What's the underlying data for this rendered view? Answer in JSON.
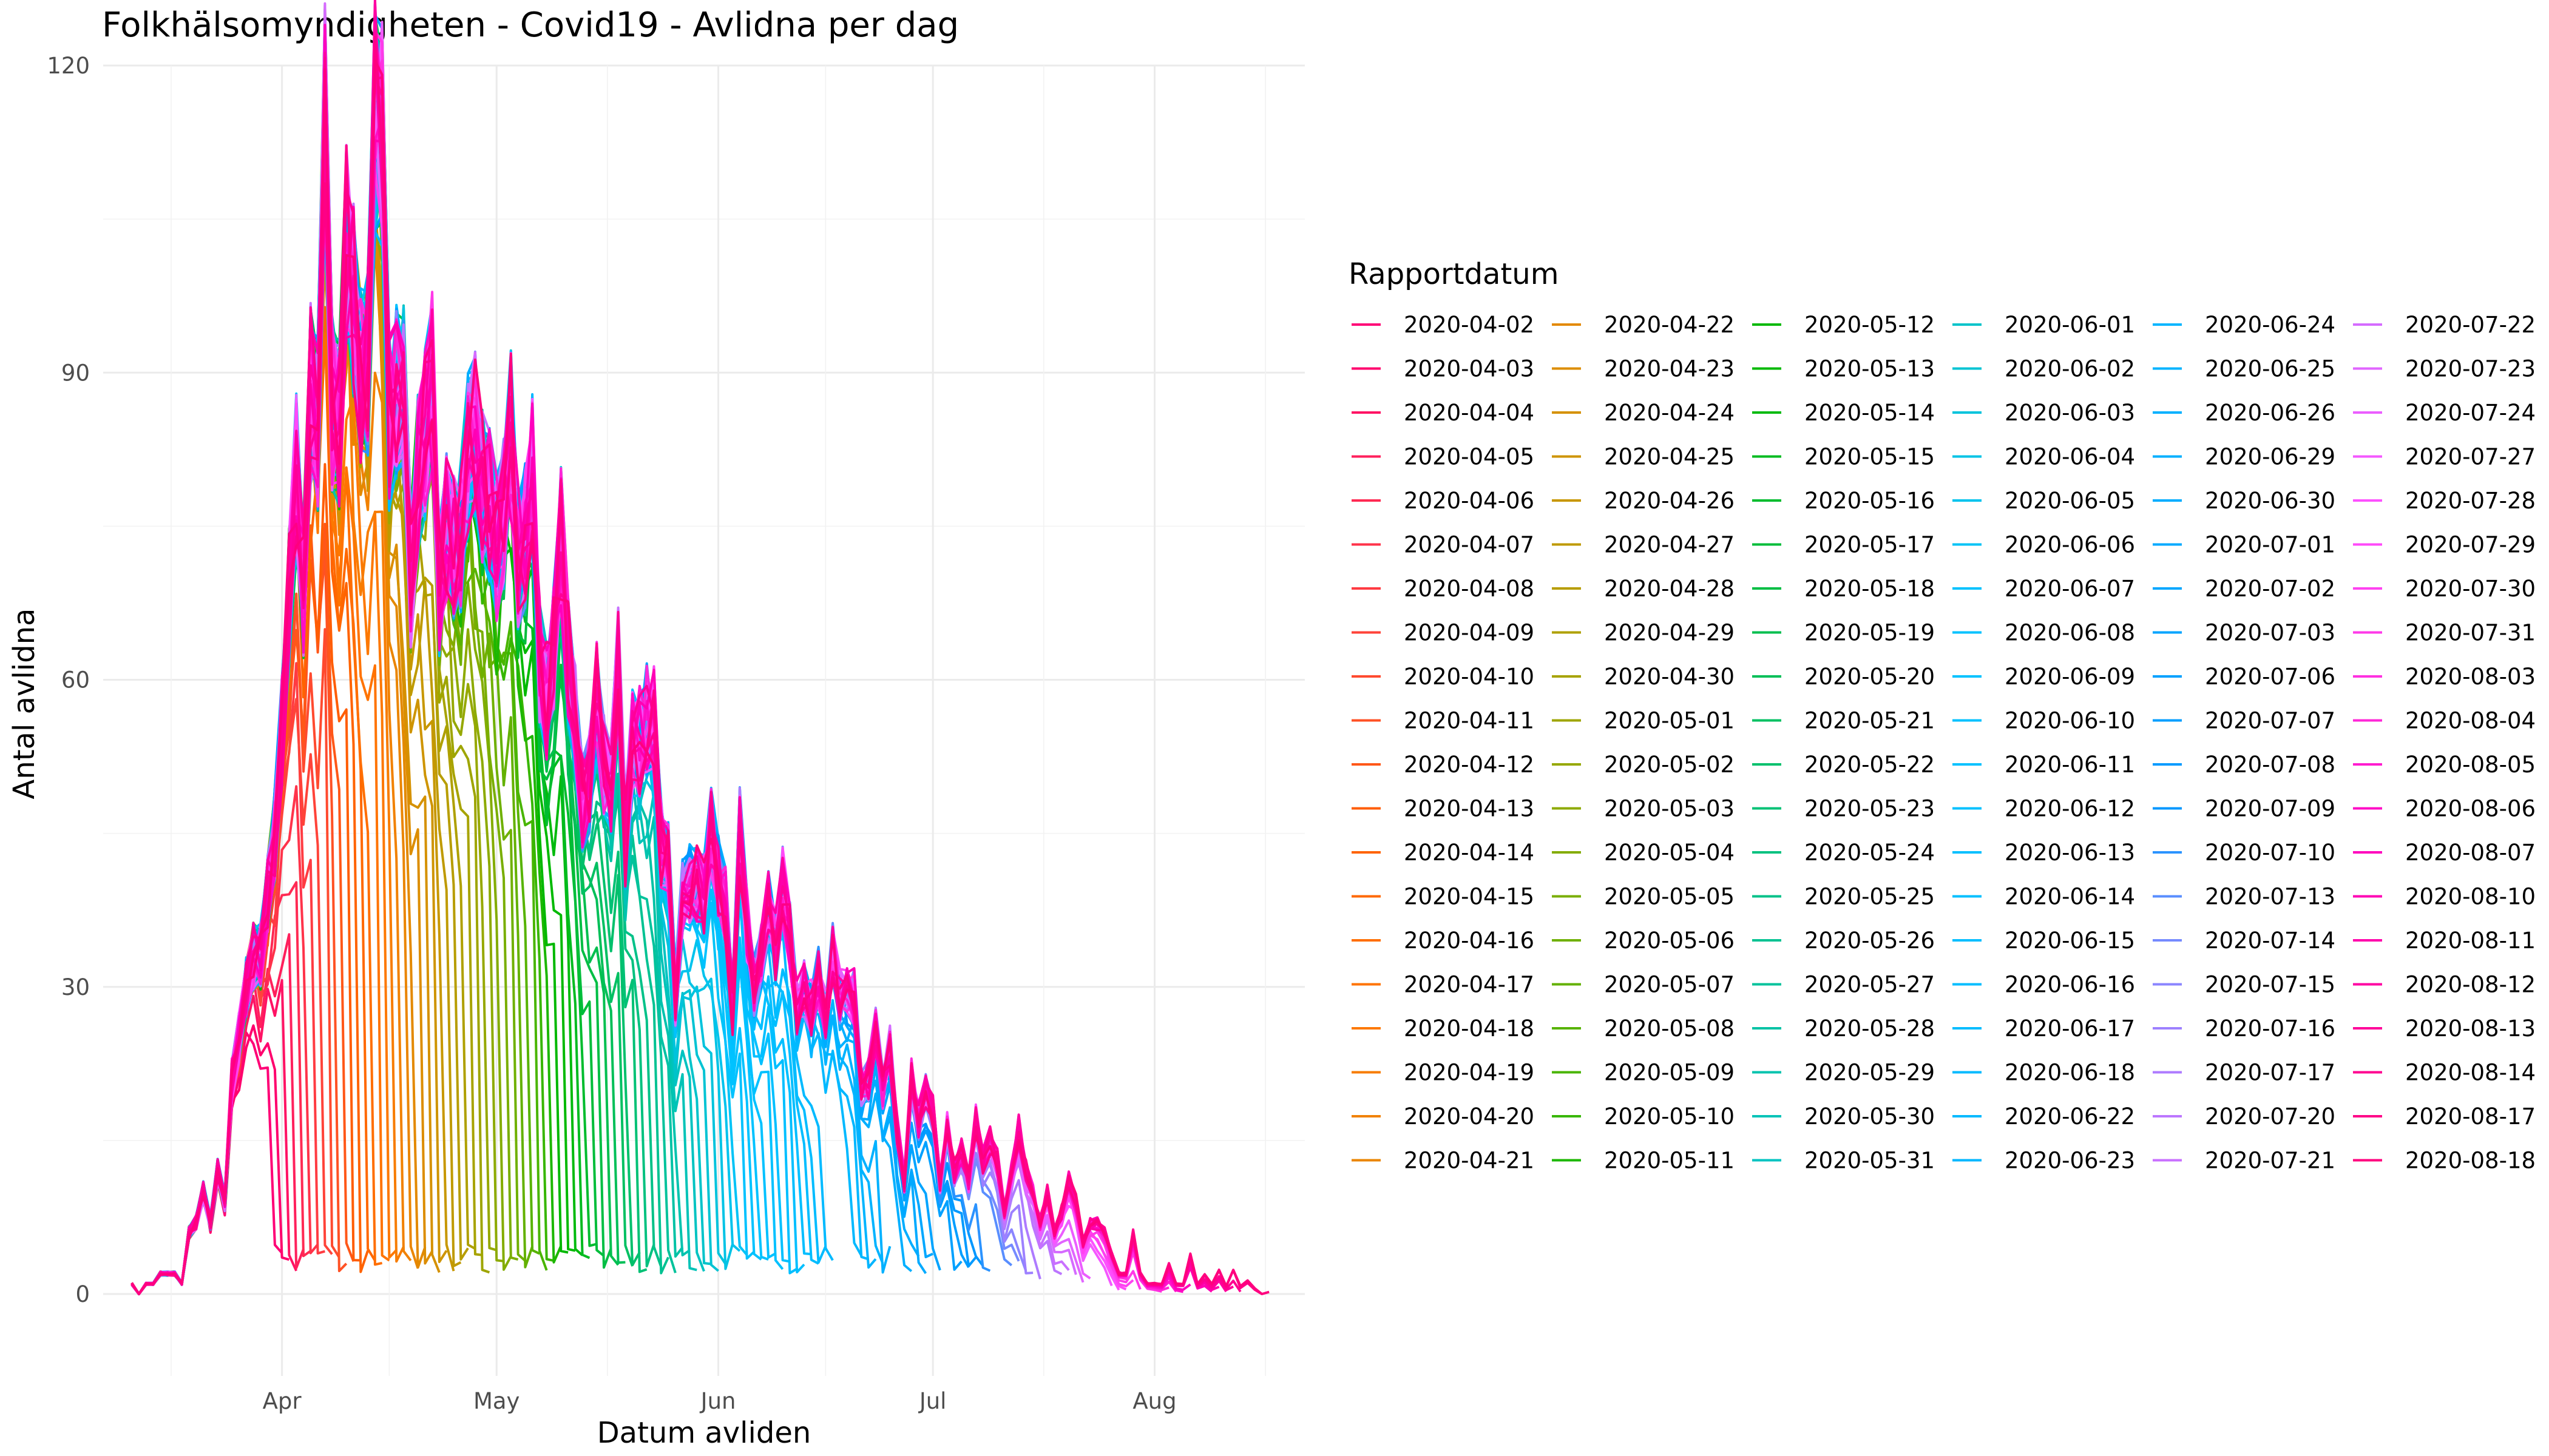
{
  "chart_data": {
    "type": "line",
    "title": "Folkhälsomyndigheten - Covid19 - Avlidna per dag",
    "xlabel": "Datum avliden",
    "ylabel": "Antal avlidna",
    "x_axis_type": "date",
    "xlim": [
      "2020-03-07",
      "2020-08-22"
    ],
    "ylim": [
      -8,
      120
    ],
    "x_ticks": [
      {
        "date": "2020-04-01",
        "label": "Apr"
      },
      {
        "date": "2020-05-01",
        "label": "May"
      },
      {
        "date": "2020-06-01",
        "label": "Jun"
      },
      {
        "date": "2020-07-01",
        "label": "Jul"
      },
      {
        "date": "2020-08-01",
        "label": "Aug"
      }
    ],
    "y_ticks": [
      0,
      30,
      60,
      90,
      120
    ],
    "grid": true,
    "legend": {
      "title": "Rapportdatum",
      "placement": "right",
      "columns": 6
    },
    "first_death_date": "2020-03-11",
    "final_curve": [
      {
        "x": "2020-03-11",
        "y": 1
      },
      {
        "x": "2020-03-12",
        "y": 0
      },
      {
        "x": "2020-03-13",
        "y": 1
      },
      {
        "x": "2020-03-14",
        "y": 1
      },
      {
        "x": "2020-03-15",
        "y": 2
      },
      {
        "x": "2020-03-16",
        "y": 2
      },
      {
        "x": "2020-03-17",
        "y": 2
      },
      {
        "x": "2020-03-18",
        "y": 1
      },
      {
        "x": "2020-03-19",
        "y": 6
      },
      {
        "x": "2020-03-20",
        "y": 7
      },
      {
        "x": "2020-03-21",
        "y": 10
      },
      {
        "x": "2020-03-22",
        "y": 7
      },
      {
        "x": "2020-03-23",
        "y": 12
      },
      {
        "x": "2020-03-24",
        "y": 9
      },
      {
        "x": "2020-03-25",
        "y": 21
      },
      {
        "x": "2020-03-26",
        "y": 25
      },
      {
        "x": "2020-03-27",
        "y": 30
      },
      {
        "x": "2020-03-28",
        "y": 33
      },
      {
        "x": "2020-03-29",
        "y": 33
      },
      {
        "x": "2020-03-30",
        "y": 39
      },
      {
        "x": "2020-03-31",
        "y": 45
      },
      {
        "x": "2020-04-01",
        "y": 55
      },
      {
        "x": "2020-04-02",
        "y": 68
      },
      {
        "x": "2020-04-03",
        "y": 80
      },
      {
        "x": "2020-04-04",
        "y": 69
      },
      {
        "x": "2020-04-05",
        "y": 88
      },
      {
        "x": "2020-04-06",
        "y": 85
      },
      {
        "x": "2020-04-07",
        "y": 115
      },
      {
        "x": "2020-04-08",
        "y": 87
      },
      {
        "x": "2020-04-09",
        "y": 85
      },
      {
        "x": "2020-04-10",
        "y": 103
      },
      {
        "x": "2020-04-11",
        "y": 97
      },
      {
        "x": "2020-04-12",
        "y": 90
      },
      {
        "x": "2020-04-13",
        "y": 91
      },
      {
        "x": "2020-04-14",
        "y": 115
      },
      {
        "x": "2020-04-15",
        "y": 113
      },
      {
        "x": "2020-04-16",
        "y": 85
      },
      {
        "x": "2020-04-17",
        "y": 88
      },
      {
        "x": "2020-04-18",
        "y": 88
      },
      {
        "x": "2020-04-19",
        "y": 70
      },
      {
        "x": "2020-04-20",
        "y": 80
      },
      {
        "x": "2020-04-21",
        "y": 84
      },
      {
        "x": "2020-04-22",
        "y": 89
      },
      {
        "x": "2020-04-23",
        "y": 69
      },
      {
        "x": "2020-04-24",
        "y": 75
      },
      {
        "x": "2020-04-25",
        "y": 73
      },
      {
        "x": "2020-04-26",
        "y": 74
      },
      {
        "x": "2020-04-27",
        "y": 82
      },
      {
        "x": "2020-04-28",
        "y": 84
      },
      {
        "x": "2020-04-29",
        "y": 79
      },
      {
        "x": "2020-04-30",
        "y": 77
      },
      {
        "x": "2020-05-01",
        "y": 73
      },
      {
        "x": "2020-05-02",
        "y": 76
      },
      {
        "x": "2020-05-03",
        "y": 84
      },
      {
        "x": "2020-05-04",
        "y": 72
      },
      {
        "x": "2020-05-05",
        "y": 74
      },
      {
        "x": "2020-05-06",
        "y": 80
      },
      {
        "x": "2020-05-07",
        "y": 62
      },
      {
        "x": "2020-05-08",
        "y": 58
      },
      {
        "x": "2020-05-09",
        "y": 63
      },
      {
        "x": "2020-05-10",
        "y": 74
      },
      {
        "x": "2020-05-11",
        "y": 62
      },
      {
        "x": "2020-05-12",
        "y": 56
      },
      {
        "x": "2020-05-13",
        "y": 48
      },
      {
        "x": "2020-05-14",
        "y": 50
      },
      {
        "x": "2020-05-15",
        "y": 58
      },
      {
        "x": "2020-05-16",
        "y": 52
      },
      {
        "x": "2020-05-17",
        "y": 50
      },
      {
        "x": "2020-05-18",
        "y": 61
      },
      {
        "x": "2020-05-19",
        "y": 44
      },
      {
        "x": "2020-05-20",
        "y": 54
      },
      {
        "x": "2020-05-21",
        "y": 54
      },
      {
        "x": "2020-05-22",
        "y": 56
      },
      {
        "x": "2020-05-23",
        "y": 56
      },
      {
        "x": "2020-05-24",
        "y": 44
      },
      {
        "x": "2020-05-25",
        "y": 42
      },
      {
        "x": "2020-05-26",
        "y": 29
      },
      {
        "x": "2020-05-27",
        "y": 39
      },
      {
        "x": "2020-05-28",
        "y": 40
      },
      {
        "x": "2020-05-29",
        "y": 40
      },
      {
        "x": "2020-05-30",
        "y": 39
      },
      {
        "x": "2020-05-31",
        "y": 45
      },
      {
        "x": "2020-06-01",
        "y": 41
      },
      {
        "x": "2020-06-02",
        "y": 38
      },
      {
        "x": "2020-06-03",
        "y": 28
      },
      {
        "x": "2020-06-04",
        "y": 45
      },
      {
        "x": "2020-06-05",
        "y": 36
      },
      {
        "x": "2020-06-06",
        "y": 30
      },
      {
        "x": "2020-06-07",
        "y": 33
      },
      {
        "x": "2020-06-08",
        "y": 38
      },
      {
        "x": "2020-06-09",
        "y": 34
      },
      {
        "x": "2020-06-10",
        "y": 40
      },
      {
        "x": "2020-06-11",
        "y": 35
      },
      {
        "x": "2020-06-12",
        "y": 28
      },
      {
        "x": "2020-06-13",
        "y": 30
      },
      {
        "x": "2020-06-14",
        "y": 28
      },
      {
        "x": "2020-06-15",
        "y": 31
      },
      {
        "x": "2020-06-16",
        "y": 27
      },
      {
        "x": "2020-06-17",
        "y": 33
      },
      {
        "x": "2020-06-18",
        "y": 29
      },
      {
        "x": "2020-06-19",
        "y": 29
      },
      {
        "x": "2020-06-20",
        "y": 29
      },
      {
        "x": "2020-06-21",
        "y": 20
      },
      {
        "x": "2020-06-22",
        "y": 21
      },
      {
        "x": "2020-06-23",
        "y": 26
      },
      {
        "x": "2020-06-24",
        "y": 20
      },
      {
        "x": "2020-06-25",
        "y": 24
      },
      {
        "x": "2020-06-26",
        "y": 16
      },
      {
        "x": "2020-06-27",
        "y": 11
      },
      {
        "x": "2020-06-28",
        "y": 21
      },
      {
        "x": "2020-06-29",
        "y": 17
      },
      {
        "x": "2020-06-30",
        "y": 20
      },
      {
        "x": "2020-07-01",
        "y": 18
      },
      {
        "x": "2020-07-02",
        "y": 11
      },
      {
        "x": "2020-07-03",
        "y": 17
      },
      {
        "x": "2020-07-04",
        "y": 12
      },
      {
        "x": "2020-07-05",
        "y": 14
      },
      {
        "x": "2020-07-06",
        "y": 11
      },
      {
        "x": "2020-07-07",
        "y": 17
      },
      {
        "x": "2020-07-08",
        "y": 13
      },
      {
        "x": "2020-07-09",
        "y": 15
      },
      {
        "x": "2020-07-10",
        "y": 13
      },
      {
        "x": "2020-07-11",
        "y": 8
      },
      {
        "x": "2020-07-12",
        "y": 12
      },
      {
        "x": "2020-07-13",
        "y": 16
      },
      {
        "x": "2020-07-14",
        "y": 12
      },
      {
        "x": "2020-07-15",
        "y": 10
      },
      {
        "x": "2020-07-16",
        "y": 7
      },
      {
        "x": "2020-07-17",
        "y": 10
      },
      {
        "x": "2020-07-18",
        "y": 6
      },
      {
        "x": "2020-07-19",
        "y": 8
      },
      {
        "x": "2020-07-20",
        "y": 11
      },
      {
        "x": "2020-07-21",
        "y": 9
      },
      {
        "x": "2020-07-22",
        "y": 5
      },
      {
        "x": "2020-07-23",
        "y": 7
      },
      {
        "x": "2020-07-24",
        "y": 7
      },
      {
        "x": "2020-07-25",
        "y": 6
      },
      {
        "x": "2020-07-26",
        "y": 4
      },
      {
        "x": "2020-07-27",
        "y": 2
      },
      {
        "x": "2020-07-28",
        "y": 2
      },
      {
        "x": "2020-07-29",
        "y": 6
      },
      {
        "x": "2020-07-30",
        "y": 2
      },
      {
        "x": "2020-07-31",
        "y": 1
      },
      {
        "x": "2020-08-01",
        "y": 1
      },
      {
        "x": "2020-08-02",
        "y": 1
      },
      {
        "x": "2020-08-03",
        "y": 3
      },
      {
        "x": "2020-08-04",
        "y": 1
      },
      {
        "x": "2020-08-05",
        "y": 1
      },
      {
        "x": "2020-08-06",
        "y": 4
      },
      {
        "x": "2020-08-07",
        "y": 1
      },
      {
        "x": "2020-08-08",
        "y": 2
      },
      {
        "x": "2020-08-09",
        "y": 1
      },
      {
        "x": "2020-08-10",
        "y": 3
      },
      {
        "x": "2020-08-11",
        "y": 1
      },
      {
        "x": "2020-08-12",
        "y": 3
      },
      {
        "x": "2020-08-13",
        "y": 1
      },
      {
        "x": "2020-08-14",
        "y": 2
      },
      {
        "x": "2020-08-15",
        "y": 1
      },
      {
        "x": "2020-08-16",
        "y": 0
      },
      {
        "x": "2020-08-17",
        "y": 1
      },
      {
        "x": "2020-08-18",
        "y": 0
      }
    ],
    "series_names": [
      "2020-04-02",
      "2020-04-03",
      "2020-04-04",
      "2020-04-05",
      "2020-04-06",
      "2020-04-07",
      "2020-04-08",
      "2020-04-09",
      "2020-04-10",
      "2020-04-11",
      "2020-04-12",
      "2020-04-13",
      "2020-04-14",
      "2020-04-15",
      "2020-04-16",
      "2020-04-17",
      "2020-04-18",
      "2020-04-19",
      "2020-04-20",
      "2020-04-21",
      "2020-04-22",
      "2020-04-23",
      "2020-04-24",
      "2020-04-25",
      "2020-04-26",
      "2020-04-27",
      "2020-04-28",
      "2020-04-29",
      "2020-04-30",
      "2020-05-01",
      "2020-05-02",
      "2020-05-03",
      "2020-05-04",
      "2020-05-05",
      "2020-05-06",
      "2020-05-07",
      "2020-05-08",
      "2020-05-09",
      "2020-05-10",
      "2020-05-11",
      "2020-05-12",
      "2020-05-13",
      "2020-05-14",
      "2020-05-15",
      "2020-05-16",
      "2020-05-17",
      "2020-05-18",
      "2020-05-19",
      "2020-05-20",
      "2020-05-21",
      "2020-05-22",
      "2020-05-23",
      "2020-05-24",
      "2020-05-25",
      "2020-05-26",
      "2020-05-27",
      "2020-05-28",
      "2020-05-29",
      "2020-05-30",
      "2020-05-31",
      "2020-06-01",
      "2020-06-02",
      "2020-06-03",
      "2020-06-04",
      "2020-06-05",
      "2020-06-06",
      "2020-06-07",
      "2020-06-08",
      "2020-06-09",
      "2020-06-10",
      "2020-06-11",
      "2020-06-12",
      "2020-06-13",
      "2020-06-14",
      "2020-06-15",
      "2020-06-16",
      "2020-06-17",
      "2020-06-18",
      "2020-06-22",
      "2020-06-23",
      "2020-06-24",
      "2020-06-25",
      "2020-06-26",
      "2020-06-29",
      "2020-06-30",
      "2020-07-01",
      "2020-07-02",
      "2020-07-03",
      "2020-07-06",
      "2020-07-07",
      "2020-07-08",
      "2020-07-09",
      "2020-07-10",
      "2020-07-13",
      "2020-07-14",
      "2020-07-15",
      "2020-07-16",
      "2020-07-17",
      "2020-07-20",
      "2020-07-21",
      "2020-07-22",
      "2020-07-23",
      "2020-07-24",
      "2020-07-27",
      "2020-07-28",
      "2020-07-29",
      "2020-07-30",
      "2020-07-31",
      "2020-08-03",
      "2020-08-04",
      "2020-08-05",
      "2020-08-06",
      "2020-08-07",
      "2020-08-10",
      "2020-08-11",
      "2020-08-12",
      "2020-08-13",
      "2020-08-14",
      "2020-08-17",
      "2020-08-18"
    ]
  }
}
